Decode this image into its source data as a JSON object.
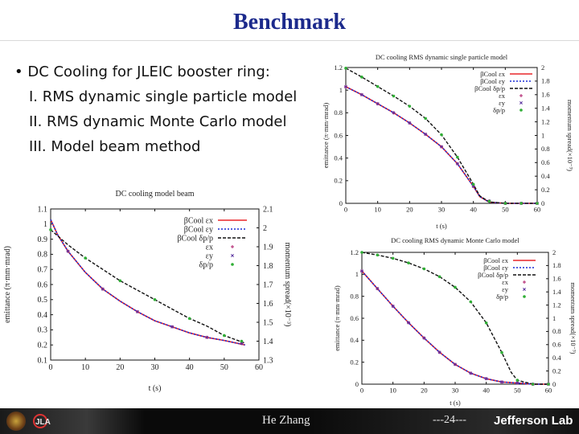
{
  "slide": {
    "title": "Benchmark",
    "bullets": [
      "• DC Cooling for JLEIC booster ring:",
      "I. RMS dynamic single particle model",
      "II. RMS dynamic Monte Carlo model",
      "III. Model beam method"
    ]
  },
  "footer": {
    "author": "He Zhang",
    "page": "---24---",
    "lab": "Jefferson Lab",
    "logo_text": "JLA"
  },
  "colors": {
    "title": "#1c2a8c",
    "ex_line": "#e8262a",
    "ey_line": "#1c2fd6",
    "dp_line": "#111111",
    "ex_pt": "#b0226e",
    "ey_pt": "#5a34a0",
    "dp_pt": "#2fae35"
  },
  "chart_data": [
    {
      "type": "line",
      "title": "DC cooling model beam",
      "xlabel": "t (s)",
      "ylabel": "emittance (π·mm·mrad)",
      "y2label": "momentum spread(×10⁻³)",
      "xlim": [
        0,
        60
      ],
      "ylim": [
        0.1,
        1.1
      ],
      "y2lim": [
        1.3,
        2.1
      ],
      "xticks": [
        "0",
        "10",
        "20",
        "30",
        "40",
        "50",
        "60"
      ],
      "yticks": [
        "0.1",
        "0.2",
        "0.3",
        "0.4",
        "0.5",
        "0.6",
        "0.7",
        "0.8",
        "0.9",
        "1",
        "1.1"
      ],
      "y2ticks": [
        "1.3",
        "1.4",
        "1.5",
        "1.6",
        "1.7",
        "1.8",
        "1.9",
        "2",
        "2.1"
      ],
      "legend": [
        "βCool εx",
        "βCool εy",
        "βCool δp/p",
        "εx",
        "εy",
        "δp/p"
      ],
      "legend_position": "top-right",
      "series": [
        {
          "name": "βCool εx",
          "style": "line",
          "axis": "left",
          "x": [
            0,
            2,
            5,
            10,
            15,
            20,
            25,
            30,
            35,
            40,
            45,
            50,
            56
          ],
          "y": [
            1.03,
            0.93,
            0.82,
            0.68,
            0.57,
            0.49,
            0.42,
            0.36,
            0.32,
            0.28,
            0.25,
            0.23,
            0.2
          ]
        },
        {
          "name": "βCool εy",
          "style": "line",
          "axis": "left",
          "x": [
            0,
            2,
            5,
            10,
            15,
            20,
            25,
            30,
            35,
            40,
            45,
            50,
            56
          ],
          "y": [
            1.03,
            0.93,
            0.82,
            0.68,
            0.57,
            0.49,
            0.42,
            0.36,
            0.32,
            0.28,
            0.25,
            0.23,
            0.2
          ]
        },
        {
          "name": "βCool δp/p",
          "style": "line",
          "axis": "right",
          "x": [
            0,
            5,
            10,
            15,
            20,
            25,
            30,
            35,
            40,
            45,
            50,
            56
          ],
          "y": [
            1.99,
            1.91,
            1.84,
            1.78,
            1.72,
            1.67,
            1.62,
            1.57,
            1.52,
            1.48,
            1.43,
            1.39
          ]
        },
        {
          "name": "εx",
          "style": "points",
          "axis": "left",
          "x": [
            5,
            15,
            25,
            35,
            45,
            55
          ],
          "y": [
            0.82,
            0.57,
            0.42,
            0.32,
            0.25,
            0.21
          ]
        },
        {
          "name": "εy",
          "style": "points",
          "axis": "left",
          "x": [
            5,
            15,
            25,
            35,
            45,
            55
          ],
          "y": [
            0.82,
            0.57,
            0.42,
            0.32,
            0.25,
            0.21
          ]
        },
        {
          "name": "δp/p",
          "style": "points",
          "axis": "right",
          "x": [
            0,
            10,
            20,
            30,
            40,
            50,
            55
          ],
          "y": [
            1.99,
            1.84,
            1.72,
            1.62,
            1.52,
            1.43,
            1.4
          ]
        }
      ]
    },
    {
      "type": "line",
      "title": "DC cooling RMS dynamic single particle model",
      "xlabel": "t (s)",
      "ylabel": "emittance (π·mm·mrad)",
      "y2label": "momentum spread(×10⁻³)",
      "xlim": [
        0,
        60
      ],
      "ylim": [
        0,
        1.2
      ],
      "y2lim": [
        0,
        2
      ],
      "xticks": [
        "0",
        "10",
        "20",
        "30",
        "40",
        "50",
        "60"
      ],
      "yticks": [
        "0",
        "0.2",
        "0.4",
        "0.6",
        "0.8",
        "1",
        "1.2"
      ],
      "y2ticks": [
        "0",
        "0.2",
        "0.4",
        "0.6",
        "0.8",
        "1",
        "1.2",
        "1.4",
        "1.6",
        "1.8",
        "2"
      ],
      "legend": [
        "βCool εx",
        "βCool εy",
        "βCool δp/p",
        "εx",
        "εy",
        "δp/p"
      ],
      "legend_position": "top-right",
      "series": [
        {
          "name": "βCool εx",
          "style": "line",
          "axis": "left",
          "x": [
            0,
            5,
            10,
            15,
            20,
            25,
            30,
            35,
            40,
            42,
            45,
            50,
            60
          ],
          "y": [
            1.03,
            0.96,
            0.88,
            0.8,
            0.71,
            0.61,
            0.5,
            0.35,
            0.15,
            0.06,
            0.01,
            0,
            0
          ]
        },
        {
          "name": "βCool εy",
          "style": "line",
          "axis": "left",
          "x": [
            0,
            5,
            10,
            15,
            20,
            25,
            30,
            35,
            40,
            42,
            45,
            50,
            60
          ],
          "y": [
            1.03,
            0.96,
            0.88,
            0.8,
            0.71,
            0.61,
            0.5,
            0.35,
            0.15,
            0.06,
            0.01,
            0,
            0
          ]
        },
        {
          "name": "βCool δp/p",
          "style": "line",
          "axis": "right",
          "x": [
            0,
            5,
            10,
            15,
            20,
            25,
            30,
            35,
            40,
            42,
            45,
            50,
            60
          ],
          "y": [
            1.99,
            1.86,
            1.72,
            1.58,
            1.43,
            1.25,
            1.01,
            0.68,
            0.28,
            0.11,
            0.02,
            0,
            0
          ]
        },
        {
          "name": "εx",
          "style": "points",
          "axis": "left",
          "x": [
            0,
            5,
            10,
            15,
            20,
            25,
            30,
            35,
            40,
            45,
            50,
            55,
            60
          ],
          "y": [
            1.03,
            0.96,
            0.88,
            0.8,
            0.71,
            0.61,
            0.5,
            0.35,
            0.15,
            0.02,
            0,
            0,
            0
          ]
        },
        {
          "name": "εy",
          "style": "points",
          "axis": "left",
          "x": [
            0,
            5,
            10,
            15,
            20,
            25,
            30,
            35,
            40,
            45,
            50,
            55,
            60
          ],
          "y": [
            1.03,
            0.96,
            0.88,
            0.8,
            0.71,
            0.61,
            0.5,
            0.35,
            0.15,
            0.02,
            0,
            0,
            0
          ]
        },
        {
          "name": "δp/p",
          "style": "points",
          "axis": "right",
          "x": [
            0,
            5,
            10,
            15,
            20,
            25,
            30,
            35,
            40,
            45,
            50,
            55,
            60
          ],
          "y": [
            1.99,
            1.86,
            1.72,
            1.58,
            1.43,
            1.25,
            1.01,
            0.68,
            0.28,
            0.03,
            0,
            0,
            0
          ]
        }
      ]
    },
    {
      "type": "line",
      "title": "DC cooling RMS dynamic Monte Carlo model",
      "xlabel": "t (s)",
      "ylabel": "emittance (π·mm·mrad)",
      "y2label": "momentum spread(×10⁻³)",
      "xlim": [
        0,
        60
      ],
      "ylim": [
        0,
        1.2
      ],
      "y2lim": [
        0,
        2
      ],
      "xticks": [
        "0",
        "10",
        "20",
        "30",
        "40",
        "50",
        "60"
      ],
      "yticks": [
        "0",
        "0.2",
        "0.4",
        "0.6",
        "0.8",
        "1",
        "1.2"
      ],
      "y2ticks": [
        "0",
        "0.2",
        "0.4",
        "0.6",
        "0.8",
        "1",
        "1.2",
        "1.4",
        "1.6",
        "1.8",
        "2"
      ],
      "legend": [
        "βCool εx",
        "βCool εy",
        "βCool δp/p",
        "εx",
        "εy",
        "δp/p"
      ],
      "legend_position": "top-right",
      "series": [
        {
          "name": "βCool εx",
          "style": "line",
          "axis": "left",
          "x": [
            0,
            5,
            10,
            15,
            20,
            25,
            30,
            35,
            40,
            45,
            50,
            55,
            60
          ],
          "y": [
            1.03,
            0.87,
            0.71,
            0.56,
            0.42,
            0.29,
            0.18,
            0.1,
            0.05,
            0.02,
            0.01,
            0,
            0
          ]
        },
        {
          "name": "βCool εy",
          "style": "line",
          "axis": "left",
          "x": [
            0,
            5,
            10,
            15,
            20,
            25,
            30,
            35,
            40,
            45,
            50,
            55,
            60
          ],
          "y": [
            1.03,
            0.87,
            0.71,
            0.56,
            0.42,
            0.29,
            0.18,
            0.1,
            0.05,
            0.02,
            0.01,
            0,
            0
          ]
        },
        {
          "name": "βCool δp/p",
          "style": "line",
          "axis": "right",
          "x": [
            0,
            5,
            10,
            15,
            20,
            25,
            30,
            35,
            40,
            45,
            48,
            50,
            55,
            60
          ],
          "y": [
            2,
            1.96,
            1.91,
            1.84,
            1.75,
            1.63,
            1.47,
            1.25,
            0.93,
            0.48,
            0.18,
            0.06,
            0,
            0
          ]
        },
        {
          "name": "εx",
          "style": "points",
          "axis": "left",
          "x": [
            0,
            5,
            10,
            15,
            20,
            25,
            30,
            35,
            40,
            45,
            50,
            55,
            60
          ],
          "y": [
            1.03,
            0.87,
            0.71,
            0.56,
            0.42,
            0.29,
            0.18,
            0.1,
            0.05,
            0.02,
            0.01,
            0,
            0
          ]
        },
        {
          "name": "εy",
          "style": "points",
          "axis": "left",
          "x": [
            0,
            5,
            10,
            15,
            20,
            25,
            30,
            35,
            40,
            45,
            50,
            55,
            60
          ],
          "y": [
            1.03,
            0.87,
            0.71,
            0.56,
            0.42,
            0.29,
            0.18,
            0.1,
            0.05,
            0.02,
            0.01,
            0,
            0
          ]
        },
        {
          "name": "δp/p",
          "style": "points",
          "axis": "right",
          "x": [
            0,
            5,
            10,
            15,
            20,
            25,
            30,
            35,
            40,
            45,
            50,
            55,
            60
          ],
          "y": [
            2,
            1.96,
            1.91,
            1.84,
            1.75,
            1.63,
            1.47,
            1.25,
            0.93,
            0.48,
            0.06,
            0,
            0
          ]
        }
      ]
    }
  ]
}
